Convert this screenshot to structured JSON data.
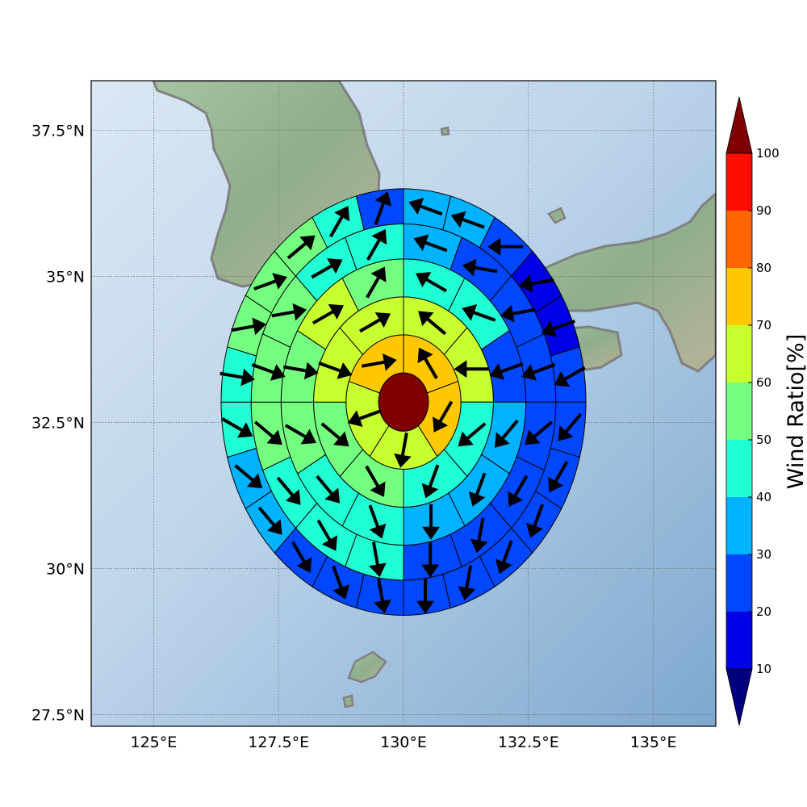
{
  "map": {
    "lon_range": [
      123.75,
      136.25
    ],
    "lat_range": [
      27.3,
      38.35
    ],
    "lon_ticks": [
      {
        "value": 125,
        "label": "125°E"
      },
      {
        "value": 127.5,
        "label": "127.5°E"
      },
      {
        "value": 130,
        "label": "130°E"
      },
      {
        "value": 132.5,
        "label": "132.5°E"
      },
      {
        "value": 135,
        "label": "135°E"
      }
    ],
    "lat_ticks": [
      {
        "value": 37.5,
        "label": "37.5°N"
      },
      {
        "value": 35,
        "label": "35°N"
      },
      {
        "value": 32.5,
        "label": "32.5°N"
      },
      {
        "value": 30,
        "label": "30°N"
      },
      {
        "value": 27.5,
        "label": "27.5°N"
      }
    ],
    "gridlines": true,
    "coastline_color": "#808080",
    "ocean_color": "#b7cfe6",
    "land_color": "#8fb28f"
  },
  "colorbar": {
    "title": "Wind Ratio[%]",
    "levels": [
      10,
      20,
      30,
      40,
      50,
      60,
      70,
      80,
      90,
      100
    ],
    "level_labels": [
      "10",
      "20",
      "30",
      "40",
      "50",
      "60",
      "70",
      "80",
      "90",
      "100"
    ],
    "colors": [
      "#0000a8",
      "#0000e6",
      "#0047ff",
      "#00b2ff",
      "#21ffd4",
      "#75ff80",
      "#c8ff2f",
      "#ffc800",
      "#ff6500",
      "#ff0d00"
    ],
    "under_color": "#00007f",
    "over_color": "#7f0000"
  },
  "polar_grid": {
    "center": {
      "lon": 130,
      "lat": 32.85
    },
    "rings_deg": [
      0.5,
      1.15,
      1.8,
      2.45,
      3.05,
      3.65
    ],
    "center_value": 100,
    "sectors_per_ring": [
      5,
      8,
      12,
      16,
      24
    ],
    "ring_values": [
      [
        70,
        70,
        60,
        60,
        70
      ],
      [
        60,
        60,
        40,
        40,
        50,
        50,
        60,
        60
      ],
      [
        40,
        40,
        20,
        30,
        30,
        30,
        40,
        40,
        50,
        50,
        60,
        50
      ],
      [
        30,
        20,
        20,
        20,
        20,
        20,
        20,
        20,
        40,
        40,
        40,
        50,
        50,
        50,
        40,
        40
      ],
      [
        30,
        30,
        20,
        10,
        10,
        20,
        20,
        20,
        20,
        20,
        20,
        20,
        20,
        20,
        20,
        30,
        30,
        40,
        40,
        50,
        50,
        50,
        40,
        20
      ]
    ],
    "ring_dirs": [
      [
        330,
        210,
        190,
        250,
        80
      ],
      [
        310,
        270,
        230,
        200,
        150,
        130,
        110,
        60
      ],
      [
        300,
        290,
        250,
        220,
        200,
        180,
        160,
        140,
        120,
        100,
        60,
        30
      ],
      [
        290,
        280,
        260,
        250,
        230,
        210,
        190,
        180,
        170,
        150,
        140,
        130,
        110,
        80,
        60,
        30
      ],
      [
        290,
        290,
        270,
        260,
        250,
        240,
        220,
        210,
        200,
        200,
        190,
        180,
        170,
        160,
        150,
        140,
        130,
        120,
        100,
        80,
        70,
        50,
        30,
        20
      ]
    ]
  }
}
